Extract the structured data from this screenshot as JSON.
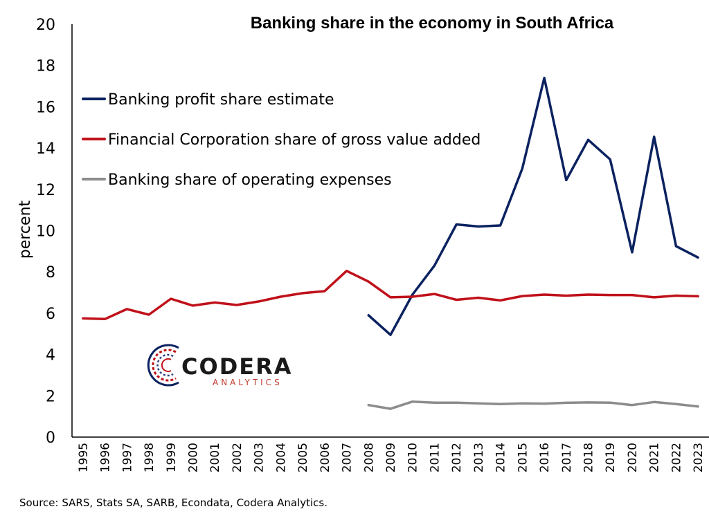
{
  "chart_data": {
    "type": "line",
    "title": "Banking share in the economy in South Africa",
    "xlabel": "",
    "ylabel": "percent",
    "ylim": [
      0,
      20
    ],
    "yticks": [
      0,
      2,
      4,
      6,
      8,
      10,
      12,
      14,
      16,
      18,
      20
    ],
    "grid": false,
    "legend_position": "top-left",
    "categories": [
      "1995",
      "1996",
      "1997",
      "1998",
      "1999",
      "2000",
      "2001",
      "2002",
      "2003",
      "2004",
      "2005",
      "2006",
      "2007",
      "2008",
      "2009",
      "2010",
      "2011",
      "2012",
      "2013",
      "2014",
      "2015",
      "2016",
      "2017",
      "2018",
      "2019",
      "2020",
      "2021",
      "2022",
      "2023"
    ],
    "series": [
      {
        "name": "Banking profit share estimate",
        "color": "#0b2260",
        "values": [
          null,
          null,
          null,
          null,
          null,
          null,
          null,
          null,
          null,
          null,
          null,
          null,
          null,
          5.9,
          4.95,
          6.9,
          8.3,
          10.3,
          10.2,
          10.25,
          13.0,
          17.4,
          12.45,
          14.4,
          13.45,
          8.95,
          14.55,
          9.25,
          8.7
        ]
      },
      {
        "name": "Financial Corporation share of gross value added",
        "color": "#c0111a",
        "values": [
          5.75,
          5.72,
          6.2,
          5.93,
          6.7,
          6.37,
          6.52,
          6.4,
          6.57,
          6.8,
          6.97,
          7.07,
          8.05,
          7.53,
          6.77,
          6.8,
          6.93,
          6.65,
          6.75,
          6.62,
          6.83,
          6.9,
          6.85,
          6.9,
          6.88,
          6.88,
          6.77,
          6.85,
          6.82
        ]
      },
      {
        "name": "Banking share of operating expenses",
        "color": "#8c8c8c",
        "values": [
          null,
          null,
          null,
          null,
          null,
          null,
          null,
          null,
          null,
          null,
          null,
          null,
          null,
          1.55,
          1.37,
          1.72,
          1.67,
          1.67,
          1.63,
          1.6,
          1.63,
          1.62,
          1.66,
          1.68,
          1.67,
          1.55,
          1.7,
          1.6,
          1.48
        ]
      }
    ]
  },
  "logo": {
    "main": "CODERA",
    "sub": "ANALYTICS"
  },
  "source": "Source: SARS, Stats SA, SARB, Econdata, Codera Analytics."
}
